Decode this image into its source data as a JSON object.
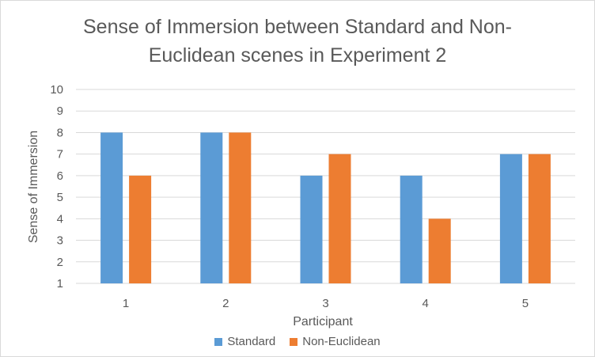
{
  "chart_data": {
    "type": "bar",
    "title_line1": "Sense of Immersion between Standard and Non-",
    "title_line2": "Euclidean scenes in Experiment 2",
    "xlabel": "Participant",
    "ylabel": "Sense of Immersion",
    "categories": [
      "1",
      "2",
      "3",
      "4",
      "5"
    ],
    "ylim": [
      1,
      10
    ],
    "yticks": [
      "1",
      "2",
      "3",
      "4",
      "5",
      "6",
      "7",
      "8",
      "9",
      "10"
    ],
    "grid": true,
    "legend_position": "bottom",
    "series": [
      {
        "name": "Standard",
        "color": "#5b9bd5",
        "values": [
          8,
          8,
          6,
          6,
          7
        ]
      },
      {
        "name": "Non-Euclidean",
        "color": "#ed7d31",
        "values": [
          6,
          8,
          7,
          4,
          7
        ]
      }
    ]
  }
}
